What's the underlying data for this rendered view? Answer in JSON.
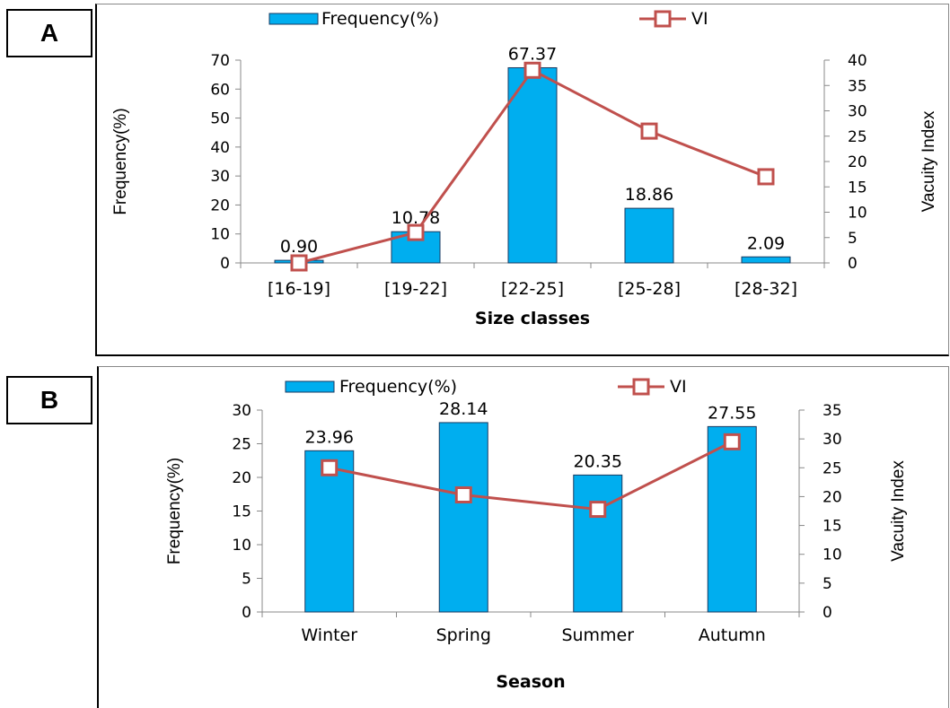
{
  "panels": {
    "a_label": "A",
    "b_label": "B"
  },
  "chart_data": [
    {
      "type": "bar",
      "panel": "A",
      "categories": [
        "[16-19]",
        "[19-22]",
        "[22-25]",
        "[25-28]",
        "[28-32]"
      ],
      "series": [
        {
          "name": "Frequency(%)",
          "type": "bar",
          "axis": "left",
          "values": [
            0.9,
            10.78,
            67.37,
            18.86,
            2.09
          ],
          "labels": [
            "0.90",
            "10.78",
            "67.37",
            "18.86",
            "2.09"
          ],
          "color": "#00aeef"
        },
        {
          "name": "VI",
          "type": "line",
          "axis": "right",
          "values": [
            0,
            6,
            38,
            26,
            17
          ],
          "color": "#c0504d"
        }
      ],
      "xlabel": "Size classes",
      "ylabel": "Frequency(%)",
      "y2label": "Vacuity Index",
      "ylim": [
        0,
        70
      ],
      "yticks": [
        0,
        10,
        20,
        30,
        40,
        50,
        60,
        70
      ],
      "y2lim": [
        0,
        40
      ],
      "y2ticks": [
        0,
        5,
        10,
        15,
        20,
        25,
        30,
        35,
        40
      ],
      "legend": "top",
      "grid": false
    },
    {
      "type": "bar",
      "panel": "B",
      "categories": [
        "Winter",
        "Spring",
        "Summer",
        "Autumn"
      ],
      "series": [
        {
          "name": "Frequency(%)",
          "type": "bar",
          "axis": "left",
          "values": [
            23.96,
            28.14,
            20.35,
            27.55
          ],
          "labels": [
            "23.96",
            "28.14",
            "20.35",
            "27.55"
          ],
          "color": "#00aeef"
        },
        {
          "name": "VI",
          "type": "line",
          "axis": "right",
          "values": [
            25,
            20.3,
            17.8,
            29.5
          ],
          "color": "#c0504d"
        }
      ],
      "xlabel": "Season",
      "ylabel": "Frequency(%)",
      "y2label": "Vacuity Index",
      "ylim": [
        0,
        30
      ],
      "yticks": [
        0,
        5,
        10,
        15,
        20,
        25,
        30
      ],
      "y2lim": [
        0,
        35
      ],
      "y2ticks": [
        0,
        5,
        10,
        15,
        20,
        25,
        30,
        35
      ],
      "legend": "top",
      "grid": false
    }
  ]
}
